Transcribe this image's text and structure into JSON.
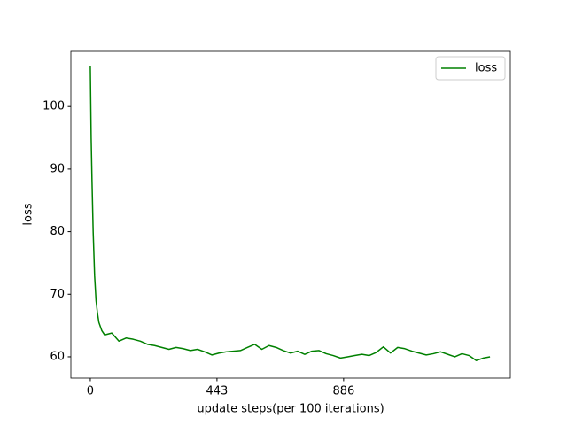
{
  "chart_data": {
    "type": "line",
    "x_label": "update steps(per 100 iterations)",
    "y_label": "loss",
    "x": [
      0,
      3,
      6,
      10,
      15,
      20,
      25,
      30,
      40,
      50,
      75,
      100,
      125,
      150,
      175,
      200,
      225,
      250,
      275,
      300,
      325,
      350,
      375,
      400,
      425,
      450,
      475,
      500,
      525,
      550,
      575,
      600,
      625,
      650,
      675,
      700,
      725,
      750,
      775,
      800,
      825,
      850,
      875,
      900,
      925,
      950,
      975,
      1000,
      1025,
      1050,
      1075,
      1100,
      1125,
      1150,
      1175,
      1200,
      1225,
      1250,
      1275,
      1300,
      1325,
      1350,
      1375,
      1398
    ],
    "series": [
      {
        "name": "loss",
        "color": "#008000",
        "values": [
          106.5,
          95,
          88,
          80,
          73,
          69,
          67,
          65.5,
          64.2,
          63.5,
          63.8,
          62.5,
          63,
          62.8,
          62.5,
          62,
          61.8,
          61.5,
          61.2,
          61.5,
          61.3,
          61,
          61.2,
          60.8,
          60.3,
          60.6,
          60.8,
          60.9,
          61,
          61.5,
          62,
          61.2,
          61.8,
          61.5,
          61,
          60.6,
          60.9,
          60.4,
          60.9,
          61,
          60.5,
          60.2,
          59.8,
          60,
          60.2,
          60.4,
          60.2,
          60.7,
          61.6,
          60.6,
          61.5,
          61.3,
          60.9,
          60.6,
          60.3,
          60.5,
          60.8,
          60.4,
          60,
          60.5,
          60.2,
          59.4,
          59.8,
          60
        ]
      }
    ],
    "xlim": [
      -68,
      1469
    ],
    "ylim": [
      56.6,
      108.8
    ],
    "xticks": [
      0,
      443,
      886
    ],
    "yticks": [
      60,
      70,
      80,
      90,
      100
    ],
    "legend": "upper right"
  }
}
